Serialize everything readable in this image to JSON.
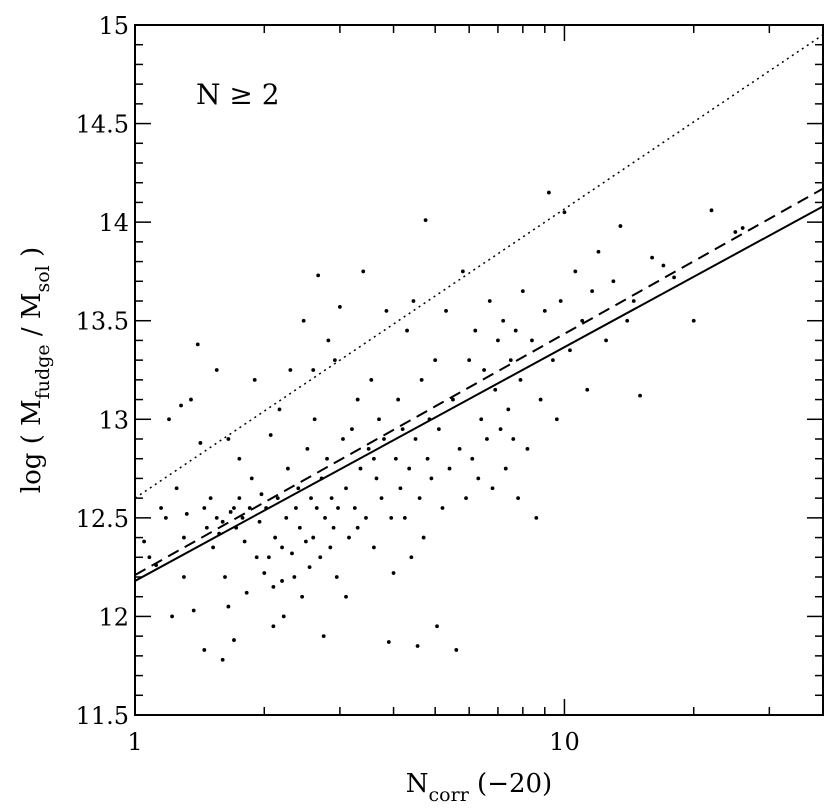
{
  "chart_data": {
    "type": "scatter",
    "xscale": "log",
    "xlim": [
      1,
      40
    ],
    "ylim": [
      11.5,
      15
    ],
    "xticks": [
      1,
      10
    ],
    "xtick_labels": [
      "1",
      "10"
    ],
    "yticks": [
      11.5,
      12,
      12.5,
      13,
      13.5,
      14,
      14.5,
      15
    ],
    "ytick_labels": [
      "11.5",
      "12",
      "12.5",
      "13",
      "13.5",
      "14",
      "14.5",
      "15"
    ],
    "xlabel": {
      "main": "N",
      "sub": "corr",
      "suffix": " (−20)"
    },
    "ylabel": {
      "prefix": "log ( M",
      "sub1": "fudge",
      "mid": " / M",
      "sub2": "sol",
      "suffix": " )"
    },
    "annotation": "N ≥ 2",
    "grid": false,
    "lines": [
      {
        "style": "solid",
        "x": [
          1,
          40
        ],
        "y": [
          12.18,
          14.08
        ]
      },
      {
        "style": "dashed",
        "x": [
          1,
          40
        ],
        "y": [
          12.21,
          14.17
        ]
      },
      {
        "style": "dotted",
        "x": [
          1,
          40
        ],
        "y": [
          12.6,
          14.95
        ]
      }
    ],
    "points": [
      [
        1.05,
        12.38
      ],
      [
        1.08,
        12.3
      ],
      [
        1.12,
        12.26
      ],
      [
        1.15,
        12.55
      ],
      [
        1.18,
        12.5
      ],
      [
        1.2,
        13.0
      ],
      [
        1.22,
        12.0
      ],
      [
        1.25,
        12.65
      ],
      [
        1.28,
        13.07
      ],
      [
        1.3,
        12.4
      ],
      [
        1.3,
        12.2
      ],
      [
        1.32,
        12.52
      ],
      [
        1.35,
        13.1
      ],
      [
        1.37,
        12.03
      ],
      [
        1.4,
        13.38
      ],
      [
        1.42,
        12.88
      ],
      [
        1.45,
        12.55
      ],
      [
        1.47,
        12.45
      ],
      [
        1.5,
        12.6
      ],
      [
        1.52,
        12.35
      ],
      [
        1.55,
        12.5
      ],
      [
        1.57,
        12.42
      ],
      [
        1.6,
        12.48
      ],
      [
        1.62,
        12.2
      ],
      [
        1.65,
        12.9
      ],
      [
        1.67,
        12.53
      ],
      [
        1.7,
        12.55
      ],
      [
        1.72,
        12.45
      ],
      [
        1.75,
        12.6
      ],
      [
        1.78,
        12.5
      ],
      [
        1.8,
        12.38
      ],
      [
        1.82,
        12.12
      ],
      [
        1.85,
        12.55
      ],
      [
        1.87,
        12.7
      ],
      [
        1.9,
        13.2
      ],
      [
        1.92,
        12.3
      ],
      [
        1.95,
        12.48
      ],
      [
        1.97,
        12.62
      ],
      [
        2.0,
        12.22
      ],
      [
        2.02,
        12.55
      ],
      [
        2.05,
        12.3
      ],
      [
        2.07,
        12.92
      ],
      [
        2.1,
        12.15
      ],
      [
        2.12,
        12.4
      ],
      [
        2.15,
        12.6
      ],
      [
        2.17,
        13.05
      ],
      [
        2.2,
        12.35
      ],
      [
        2.22,
        12.0
      ],
      [
        2.25,
        12.5
      ],
      [
        2.27,
        12.75
      ],
      [
        2.3,
        13.25
      ],
      [
        2.32,
        12.32
      ],
      [
        2.35,
        12.2
      ],
      [
        2.37,
        12.55
      ],
      [
        2.4,
        12.65
      ],
      [
        2.42,
        12.45
      ],
      [
        2.45,
        12.1
      ],
      [
        2.47,
        13.5
      ],
      [
        2.5,
        12.38
      ],
      [
        2.52,
        12.85
      ],
      [
        2.55,
        12.25
      ],
      [
        2.57,
        12.6
      ],
      [
        2.6,
        12.4
      ],
      [
        2.62,
        13.0
      ],
      [
        2.65,
        12.55
      ],
      [
        2.67,
        13.73
      ],
      [
        2.7,
        12.3
      ],
      [
        2.72,
        12.7
      ],
      [
        2.75,
        11.9
      ],
      [
        2.77,
        12.5
      ],
      [
        2.8,
        12.8
      ],
      [
        2.82,
        13.4
      ],
      [
        2.85,
        12.35
      ],
      [
        2.87,
        12.6
      ],
      [
        2.9,
        12.45
      ],
      [
        2.92,
        13.3
      ],
      [
        2.95,
        12.2
      ],
      [
        2.97,
        12.55
      ],
      [
        3.0,
        13.57
      ],
      [
        3.05,
        12.9
      ],
      [
        3.1,
        12.65
      ],
      [
        3.15,
        12.4
      ],
      [
        3.2,
        12.95
      ],
      [
        3.25,
        12.55
      ],
      [
        3.3,
        13.1
      ],
      [
        3.35,
        12.75
      ],
      [
        3.4,
        13.75
      ],
      [
        3.45,
        12.5
      ],
      [
        3.5,
        12.85
      ],
      [
        3.55,
        13.2
      ],
      [
        3.6,
        12.35
      ],
      [
        3.65,
        12.7
      ],
      [
        3.7,
        13.0
      ],
      [
        3.75,
        12.6
      ],
      [
        3.8,
        12.9
      ],
      [
        3.85,
        13.55
      ],
      [
        3.9,
        11.87
      ],
      [
        3.95,
        12.5
      ],
      [
        4.0,
        12.22
      ],
      [
        4.05,
        12.8
      ],
      [
        4.1,
        13.1
      ],
      [
        4.15,
        12.65
      ],
      [
        4.2,
        12.95
      ],
      [
        4.25,
        12.5
      ],
      [
        4.3,
        13.45
      ],
      [
        4.35,
        12.75
      ],
      [
        4.4,
        12.3
      ],
      [
        4.45,
        13.6
      ],
      [
        4.5,
        12.9
      ],
      [
        4.55,
        11.85
      ],
      [
        4.6,
        12.6
      ],
      [
        4.65,
        13.2
      ],
      [
        4.7,
        12.4
      ],
      [
        4.75,
        14.01
      ],
      [
        4.8,
        12.8
      ],
      [
        4.85,
        13.0
      ],
      [
        4.9,
        12.7
      ],
      [
        5.0,
        13.3
      ],
      [
        5.05,
        11.95
      ],
      [
        5.1,
        12.95
      ],
      [
        5.2,
        12.55
      ],
      [
        5.3,
        13.55
      ],
      [
        5.4,
        12.75
      ],
      [
        5.5,
        13.1
      ],
      [
        5.6,
        11.83
      ],
      [
        5.7,
        12.85
      ],
      [
        5.8,
        13.75
      ],
      [
        5.9,
        12.6
      ],
      [
        6.0,
        13.3
      ],
      [
        6.1,
        12.8
      ],
      [
        6.2,
        13.45
      ],
      [
        6.3,
        12.7
      ],
      [
        6.4,
        13.0
      ],
      [
        6.5,
        13.25
      ],
      [
        6.6,
        12.9
      ],
      [
        6.7,
        13.6
      ],
      [
        6.8,
        12.65
      ],
      [
        6.9,
        13.15
      ],
      [
        7.0,
        13.4
      ],
      [
        7.1,
        12.95
      ],
      [
        7.2,
        13.5
      ],
      [
        7.3,
        12.75
      ],
      [
        7.4,
        13.05
      ],
      [
        7.5,
        13.3
      ],
      [
        7.6,
        12.9
      ],
      [
        7.7,
        13.45
      ],
      [
        7.8,
        12.6
      ],
      [
        7.9,
        13.2
      ],
      [
        8.0,
        13.65
      ],
      [
        8.2,
        12.85
      ],
      [
        8.4,
        13.4
      ],
      [
        8.6,
        12.5
      ],
      [
        8.8,
        13.1
      ],
      [
        9.0,
        13.55
      ],
      [
        9.2,
        14.15
      ],
      [
        9.4,
        13.3
      ],
      [
        9.6,
        13.0
      ],
      [
        9.8,
        13.6
      ],
      [
        10.0,
        14.05
      ],
      [
        10.3,
        13.35
      ],
      [
        10.6,
        13.75
      ],
      [
        11.0,
        13.5
      ],
      [
        11.3,
        13.15
      ],
      [
        11.6,
        13.65
      ],
      [
        12.0,
        13.85
      ],
      [
        12.5,
        13.4
      ],
      [
        13.0,
        13.7
      ],
      [
        13.5,
        13.98
      ],
      [
        14.0,
        13.5
      ],
      [
        14.5,
        13.6
      ],
      [
        15.0,
        13.12
      ],
      [
        16.0,
        13.82
      ],
      [
        17.0,
        13.78
      ],
      [
        18.0,
        13.72
      ],
      [
        20.0,
        13.5
      ],
      [
        22.0,
        14.06
      ],
      [
        25.0,
        13.95
      ],
      [
        26.0,
        13.97
      ],
      [
        1.45,
        11.83
      ],
      [
        1.6,
        11.78
      ],
      [
        1.7,
        11.88
      ],
      [
        1.65,
        12.05
      ],
      [
        2.1,
        11.95
      ],
      [
        2.2,
        12.18
      ],
      [
        1.55,
        13.25
      ],
      [
        1.75,
        12.8
      ],
      [
        2.6,
        13.25
      ],
      [
        3.1,
        12.1
      ],
      [
        3.3,
        12.45
      ],
      [
        3.6,
        12.8
      ]
    ]
  }
}
